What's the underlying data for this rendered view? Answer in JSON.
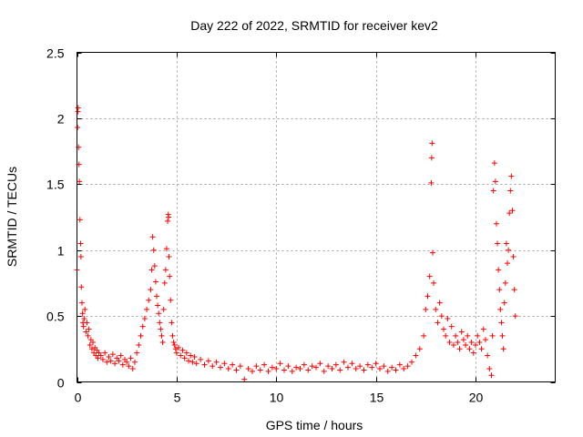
{
  "chart_data": {
    "type": "scatter",
    "title": "Day 222 of 2022, SRMTID for receiver kev2",
    "xlabel": "GPS time / hours",
    "ylabel": "SRMTID / TECUs",
    "xlim": [
      0,
      24
    ],
    "ylim": [
      0,
      2.5
    ],
    "xticks": [
      0,
      5,
      10,
      15,
      20
    ],
    "yticks": [
      0,
      0.5,
      1,
      1.5,
      2,
      2.5
    ],
    "xtick_labels": [
      "0",
      "5",
      "10",
      "15",
      "20"
    ],
    "ytick_labels": [
      "0",
      "0.5",
      "1",
      "1.5",
      "2",
      "2.5"
    ],
    "grid": true,
    "marker": "+",
    "color": "#ff0000",
    "series": [
      {
        "name": "SRMTID",
        "x": [
          0.0,
          0.03,
          0.05,
          0.06,
          0.08,
          0.1,
          0.12,
          0.15,
          0.18,
          0.2,
          0.22,
          0.25,
          0.28,
          0.3,
          0.33,
          0.36,
          0.4,
          0.45,
          0.5,
          0.55,
          0.6,
          0.65,
          0.7,
          0.75,
          0.8,
          0.85,
          0.9,
          0.95,
          1.0,
          1.05,
          1.1,
          1.2,
          1.3,
          1.4,
          1.5,
          1.6,
          1.7,
          1.8,
          1.9,
          2.0,
          2.1,
          2.2,
          2.3,
          2.4,
          2.5,
          2.6,
          2.7,
          2.8,
          2.9,
          3.0,
          3.1,
          3.2,
          3.3,
          3.4,
          3.5,
          3.6,
          3.7,
          3.75,
          3.8,
          3.85,
          3.9,
          3.95,
          4.0,
          4.05,
          4.1,
          4.15,
          4.2,
          4.25,
          4.3,
          4.35,
          4.4,
          4.45,
          4.5,
          4.55,
          4.58,
          4.6,
          4.62,
          4.65,
          4.7,
          4.75,
          4.8,
          4.85,
          4.9,
          4.95,
          5.0,
          5.1,
          5.2,
          5.3,
          5.4,
          5.5,
          5.6,
          5.7,
          5.8,
          5.9,
          6.0,
          6.2,
          6.4,
          6.6,
          6.8,
          7.0,
          7.2,
          7.4,
          7.6,
          7.8,
          8.0,
          8.2,
          8.4,
          8.6,
          8.8,
          9.0,
          9.2,
          9.4,
          9.6,
          9.8,
          10.0,
          10.2,
          10.4,
          10.6,
          10.8,
          11.0,
          11.2,
          11.4,
          11.6,
          11.8,
          12.0,
          12.2,
          12.4,
          12.6,
          12.8,
          13.0,
          13.2,
          13.4,
          13.6,
          13.8,
          14.0,
          14.2,
          14.4,
          14.6,
          14.8,
          15.0,
          15.2,
          15.4,
          15.6,
          15.8,
          16.0,
          16.2,
          16.4,
          16.6,
          16.8,
          17.0,
          17.2,
          17.4,
          17.5,
          17.6,
          17.7,
          17.78,
          17.8,
          17.82,
          17.85,
          17.9,
          18.0,
          18.1,
          18.2,
          18.3,
          18.4,
          18.5,
          18.6,
          18.7,
          18.8,
          18.9,
          19.0,
          19.1,
          19.2,
          19.3,
          19.4,
          19.5,
          19.6,
          19.7,
          19.8,
          19.9,
          20.0,
          20.1,
          20.2,
          20.3,
          20.4,
          20.5,
          20.6,
          20.7,
          20.8,
          20.85,
          20.9,
          20.95,
          21.0,
          21.05,
          21.1,
          21.15,
          21.2,
          21.25,
          21.3,
          21.35,
          21.4,
          21.45,
          21.5,
          21.55,
          21.6,
          21.65,
          21.7,
          21.75,
          21.8,
          21.85,
          21.9,
          21.95,
          22.0
        ],
        "y": [
          0.85,
          1.93,
          2.05,
          2.08,
          1.78,
          1.65,
          1.52,
          1.23,
          1.05,
          0.95,
          0.72,
          0.6,
          0.52,
          0.45,
          0.42,
          0.48,
          0.55,
          0.38,
          0.45,
          0.35,
          0.4,
          0.28,
          0.32,
          0.25,
          0.3,
          0.22,
          0.26,
          0.2,
          0.24,
          0.18,
          0.22,
          0.2,
          0.17,
          0.22,
          0.15,
          0.19,
          0.16,
          0.21,
          0.14,
          0.18,
          0.16,
          0.2,
          0.13,
          0.17,
          0.15,
          0.12,
          0.18,
          0.1,
          0.15,
          0.22,
          0.28,
          0.35,
          0.42,
          0.48,
          0.55,
          0.62,
          0.7,
          0.85,
          1.1,
          1.0,
          0.88,
          0.76,
          0.65,
          0.58,
          0.52,
          0.45,
          0.4,
          0.35,
          0.3,
          0.55,
          0.75,
          0.85,
          1.01,
          1.22,
          1.27,
          1.25,
          0.95,
          0.8,
          0.62,
          0.45,
          0.35,
          0.3,
          0.28,
          0.25,
          0.22,
          0.26,
          0.2,
          0.24,
          0.18,
          0.22,
          0.16,
          0.2,
          0.15,
          0.19,
          0.14,
          0.17,
          0.13,
          0.16,
          0.12,
          0.15,
          0.11,
          0.14,
          0.1,
          0.13,
          0.09,
          0.12,
          0.02,
          0.1,
          0.08,
          0.12,
          0.09,
          0.13,
          0.08,
          0.11,
          0.1,
          0.14,
          0.09,
          0.12,
          0.08,
          0.11,
          0.1,
          0.13,
          0.09,
          0.12,
          0.11,
          0.14,
          0.08,
          0.12,
          0.1,
          0.13,
          0.09,
          0.15,
          0.11,
          0.14,
          0.1,
          0.12,
          0.09,
          0.13,
          0.11,
          0.14,
          0.1,
          0.12,
          0.08,
          0.11,
          0.09,
          0.13,
          0.1,
          0.12,
          0.15,
          0.2,
          0.25,
          0.35,
          0.55,
          0.65,
          0.8,
          1.51,
          1.7,
          1.81,
          0.98,
          0.75,
          0.55,
          0.45,
          0.6,
          0.5,
          0.4,
          0.35,
          0.48,
          0.3,
          0.42,
          0.28,
          0.35,
          0.3,
          0.25,
          0.38,
          0.32,
          0.28,
          0.35,
          0.25,
          0.3,
          0.22,
          0.28,
          0.35,
          0.3,
          0.25,
          0.4,
          0.32,
          0.2,
          0.1,
          0.05,
          0.35,
          1.45,
          1.66,
          1.52,
          1.2,
          1.05,
          0.85,
          0.7,
          0.55,
          0.45,
          0.35,
          0.25,
          0.6,
          0.75,
          1.05,
          0.9,
          1.0,
          1.28,
          1.45,
          1.56,
          1.3,
          0.95,
          0.7,
          0.5
        ]
      }
    ]
  }
}
